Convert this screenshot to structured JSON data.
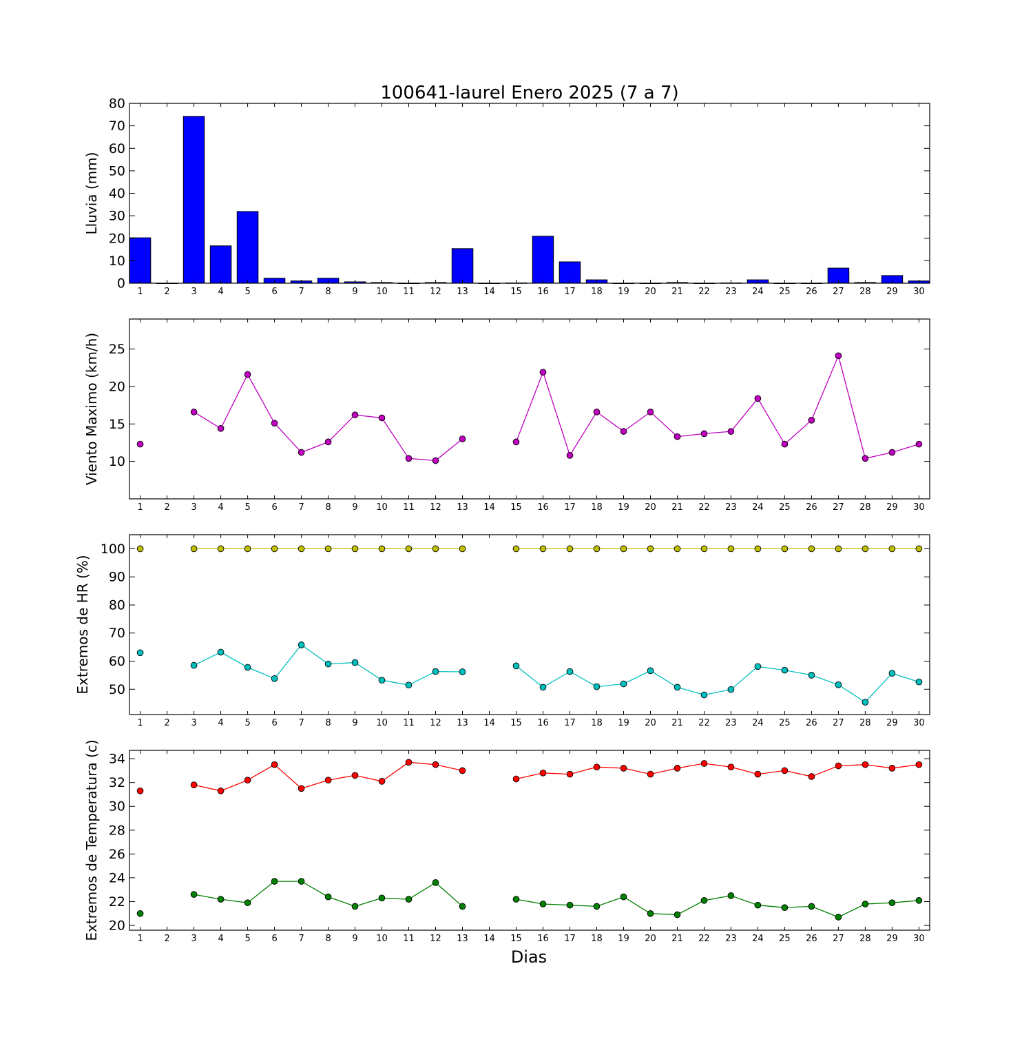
{
  "chart_data": {
    "title": "100641-laurel Enero 2025  (7 a 7)",
    "xlabel": "Dias",
    "x_ticks": [
      1,
      2,
      3,
      4,
      5,
      6,
      7,
      8,
      9,
      10,
      11,
      12,
      13,
      14,
      15,
      16,
      17,
      18,
      19,
      20,
      21,
      22,
      23,
      24,
      25,
      26,
      27,
      28,
      29,
      30
    ],
    "panels": [
      {
        "type": "bar",
        "ylabel": "Lluvia (mm)",
        "ylim": [
          0,
          80
        ],
        "yticks": [
          0,
          10,
          20,
          30,
          40,
          50,
          60,
          70,
          80
        ],
        "series": [
          {
            "color": "#0000ff",
            "values": [
              20.2,
              0,
              74.2,
              16.6,
              31.9,
              2.2,
              1.0,
              2.2,
              0.6,
              0.3,
              0,
              0.3,
              15.4,
              0,
              0.1,
              20.9,
              9.5,
              1.5,
              0,
              0,
              0.3,
              0,
              0.1,
              1.5,
              0,
              0,
              6.7,
              0.3,
              3.4,
              1.0
            ]
          }
        ]
      },
      {
        "type": "line",
        "ylabel": "Viento Maximo (km/h)",
        "ylim": [
          5,
          29
        ],
        "yticks": [
          10,
          15,
          20,
          25
        ],
        "series": [
          {
            "color": "#bf00bf",
            "values": [
              12.3,
              null,
              16.6,
              14.4,
              21.6,
              15.1,
              11.2,
              12.6,
              16.2,
              15.8,
              10.4,
              10.1,
              13.0,
              null,
              12.6,
              21.9,
              10.8,
              16.6,
              14.0,
              16.6,
              13.3,
              13.7,
              14.0,
              18.4,
              12.3,
              15.5,
              24.1,
              10.4,
              11.2,
              12.3
            ]
          }
        ]
      },
      {
        "type": "line",
        "ylabel": "Extremos de HR (%)",
        "ylim": [
          41,
          105
        ],
        "yticks": [
          50,
          60,
          70,
          80,
          90,
          100
        ],
        "series": [
          {
            "color": "#bfbf00",
            "values": [
              100,
              null,
              100,
              100,
              100,
              100,
              100,
              100,
              100,
              100,
              100,
              100,
              100,
              null,
              100,
              100,
              100,
              100,
              100,
              100,
              100,
              100,
              100,
              100,
              100,
              100,
              100,
              100,
              100,
              100
            ]
          },
          {
            "color": "#00bfbf",
            "values": [
              63.0,
              null,
              58.5,
              63.2,
              57.8,
              53.8,
              65.8,
              59.0,
              59.5,
              53.2,
              51.5,
              56.3,
              56.2,
              null,
              58.3,
              50.7,
              56.3,
              50.9,
              51.9,
              56.6,
              50.7,
              48.0,
              49.9,
              58.1,
              56.8,
              55.0,
              51.6,
              45.4,
              55.7,
              52.6
            ]
          }
        ]
      },
      {
        "type": "line",
        "ylabel": "Extremos de Temperatura (c)",
        "ylim": [
          19.6,
          34.7
        ],
        "yticks": [
          20,
          22,
          24,
          26,
          28,
          30,
          32,
          34
        ],
        "series": [
          {
            "color": "#ff0000",
            "values": [
              31.3,
              null,
              31.8,
              31.3,
              32.2,
              33.5,
              31.5,
              32.2,
              32.6,
              32.1,
              33.7,
              33.5,
              33.0,
              null,
              32.3,
              32.8,
              32.7,
              33.3,
              33.2,
              32.7,
              33.2,
              33.6,
              33.3,
              32.7,
              33.0,
              32.5,
              33.4,
              33.5,
              33.2,
              33.5
            ]
          },
          {
            "color": "#007f00",
            "values": [
              21.0,
              null,
              22.6,
              22.2,
              21.9,
              23.7,
              23.7,
              22.4,
              21.6,
              22.3,
              22.2,
              23.6,
              21.6,
              null,
              22.2,
              21.8,
              21.7,
              21.6,
              22.4,
              21.0,
              20.9,
              22.1,
              22.5,
              21.7,
              21.5,
              21.6,
              20.7,
              21.8,
              21.9,
              22.1
            ]
          }
        ]
      }
    ]
  }
}
